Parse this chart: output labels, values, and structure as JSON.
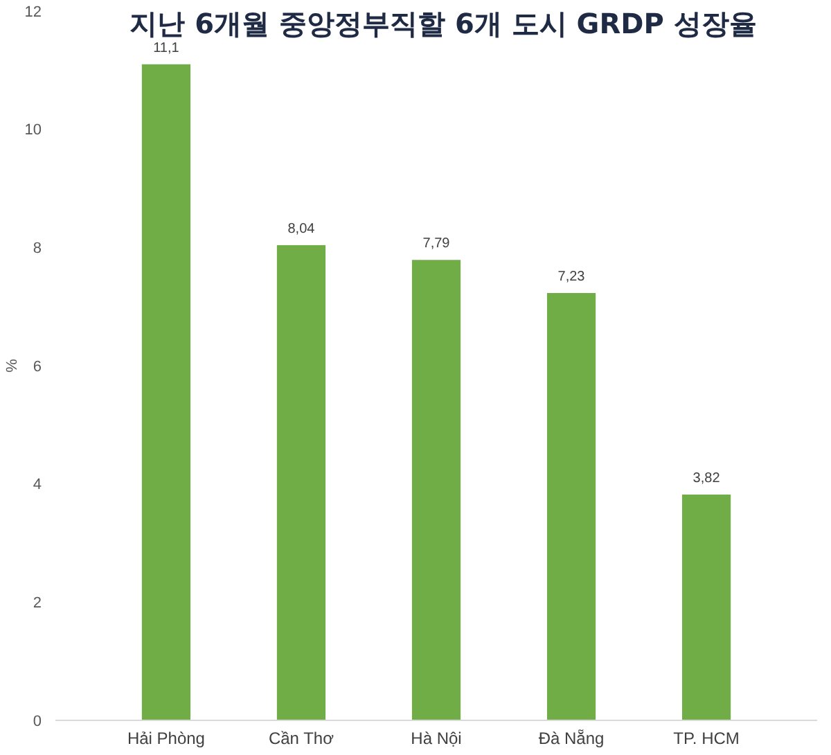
{
  "chart_data": {
    "type": "bar",
    "title": "지난 6개월 중앙정부직할 6개 도시 GRDP 성장율",
    "ylabel": "%",
    "categories": [
      "Hải Phòng",
      "Cần Thơ",
      "Hà Nội",
      "Đà Nẵng",
      "TP. HCM"
    ],
    "values": [
      11.1,
      8.04,
      7.79,
      7.23,
      3.82
    ],
    "value_labels": [
      "11,1",
      "8,04",
      "7,79",
      "7,23",
      "3,82"
    ],
    "color": "#70ad47",
    "ylim": [
      0,
      12
    ],
    "yticks": [
      0,
      2,
      4,
      6,
      8,
      10,
      12
    ],
    "grid": false
  }
}
